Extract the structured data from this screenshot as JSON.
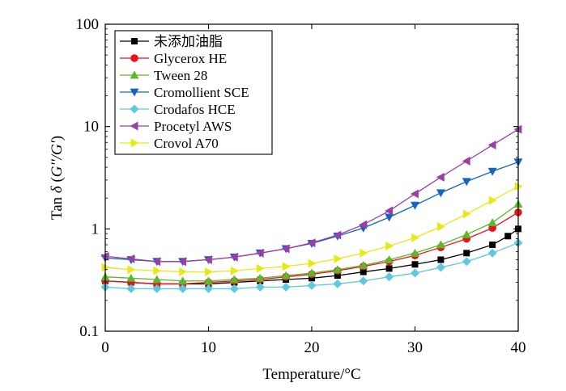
{
  "chart_data": {
    "type": "line",
    "title": "",
    "xlabel": "Temperature/°C",
    "ylabel_parts": [
      "Tan ",
      "δ",
      " (",
      "G''/G'",
      ")"
    ],
    "xlim": [
      0,
      40
    ],
    "ylim": [
      0.1,
      100
    ],
    "yscale": "log",
    "grid": false,
    "legend_position": "top-left",
    "x_ticks": [
      "0",
      "10",
      "20",
      "30",
      "40"
    ],
    "y_ticks": [
      "0.1",
      "1",
      "10",
      "100"
    ],
    "series": [
      {
        "name": "未添加油脂",
        "color": "#000000",
        "marker": "square",
        "x": [
          0,
          2.5,
          5,
          7.5,
          10,
          12.5,
          15,
          17.5,
          20,
          22.5,
          25,
          27.5,
          30,
          32.5,
          35,
          37.5,
          39,
          40
        ],
        "y": [
          0.31,
          0.3,
          0.29,
          0.29,
          0.29,
          0.3,
          0.31,
          0.32,
          0.33,
          0.35,
          0.38,
          0.41,
          0.45,
          0.5,
          0.58,
          0.7,
          0.85,
          1.0
        ]
      },
      {
        "name": "Glycerox HE",
        "color": "#e8141c",
        "marker": "circle",
        "x": [
          0,
          2.5,
          5,
          7.5,
          10,
          12.5,
          15,
          17.5,
          20,
          22.5,
          25,
          27.5,
          30,
          32.5,
          35,
          37.5,
          40
        ],
        "y": [
          0.31,
          0.3,
          0.29,
          0.29,
          0.3,
          0.31,
          0.32,
          0.34,
          0.36,
          0.39,
          0.43,
          0.48,
          0.55,
          0.66,
          0.8,
          1.02,
          1.45
        ]
      },
      {
        "name": "Tween 28",
        "color": "#5cb82c",
        "marker": "triangle-up",
        "x": [
          0,
          2.5,
          5,
          7.5,
          10,
          12.5,
          15,
          17.5,
          20,
          22.5,
          25,
          27.5,
          30,
          32.5,
          35,
          37.5,
          40
        ],
        "y": [
          0.34,
          0.33,
          0.32,
          0.31,
          0.31,
          0.32,
          0.33,
          0.35,
          0.37,
          0.4,
          0.44,
          0.5,
          0.58,
          0.7,
          0.88,
          1.15,
          1.75
        ]
      },
      {
        "name": "Cromollient SCE",
        "color": "#1565c0",
        "marker": "triangle-down",
        "x": [
          0,
          2.5,
          5,
          7.5,
          10,
          12.5,
          15,
          17.5,
          20,
          22.5,
          25,
          27.5,
          30,
          32.5,
          35,
          37.5,
          40
        ],
        "y": [
          0.52,
          0.5,
          0.48,
          0.48,
          0.5,
          0.53,
          0.58,
          0.64,
          0.72,
          0.85,
          1.02,
          1.3,
          1.7,
          2.25,
          2.9,
          3.65,
          4.5
        ]
      },
      {
        "name": "Crodafos HCE",
        "color": "#5ec8e0",
        "marker": "diamond",
        "x": [
          0,
          2.5,
          5,
          7.5,
          10,
          12.5,
          15,
          17.5,
          20,
          22.5,
          25,
          27.5,
          30,
          32.5,
          35,
          37.5,
          40
        ],
        "y": [
          0.27,
          0.26,
          0.26,
          0.26,
          0.26,
          0.26,
          0.27,
          0.27,
          0.28,
          0.29,
          0.31,
          0.34,
          0.37,
          0.42,
          0.48,
          0.58,
          0.73
        ]
      },
      {
        "name": "Procetyl AWS",
        "color": "#9b3fa6",
        "marker": "triangle-left",
        "x": [
          0,
          2.5,
          5,
          7.5,
          10,
          12.5,
          15,
          17.5,
          20,
          22.5,
          25,
          27.5,
          30,
          32.5,
          35,
          37.5,
          40
        ],
        "y": [
          0.54,
          0.51,
          0.48,
          0.48,
          0.5,
          0.53,
          0.58,
          0.64,
          0.73,
          0.87,
          1.1,
          1.5,
          2.2,
          3.2,
          4.6,
          6.6,
          9.4
        ]
      },
      {
        "name": "Crovol A70",
        "color": "#e8e817",
        "marker": "triangle-right",
        "x": [
          0,
          2.5,
          5,
          7.5,
          10,
          12.5,
          15,
          17.5,
          20,
          22.5,
          25,
          27.5,
          30,
          32.5,
          35,
          37.5,
          40
        ],
        "y": [
          0.42,
          0.4,
          0.39,
          0.38,
          0.38,
          0.39,
          0.41,
          0.43,
          0.46,
          0.51,
          0.58,
          0.68,
          0.82,
          1.05,
          1.4,
          1.9,
          2.6
        ]
      }
    ]
  }
}
